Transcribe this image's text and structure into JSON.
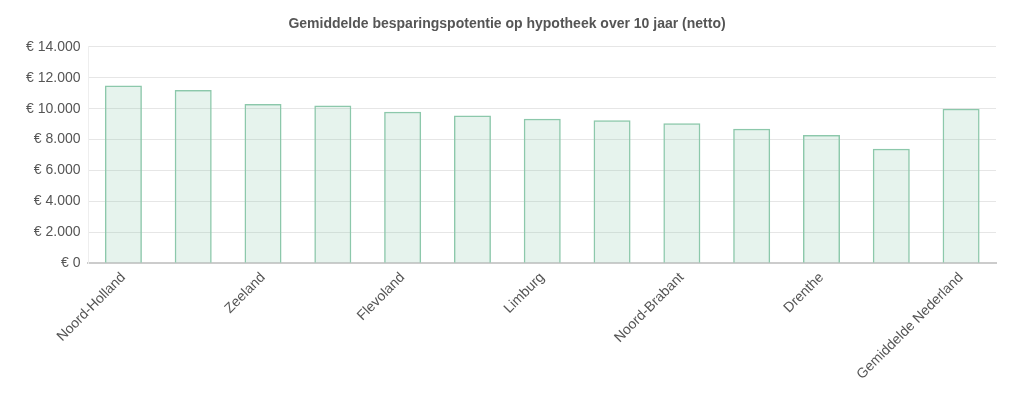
{
  "chart_data": {
    "type": "bar",
    "title": "Gemiddelde besparingspotentie op hypotheek over 10 jaar (netto)",
    "categories": [
      "Noord-Holland",
      null,
      "Zeeland",
      null,
      "Flevoland",
      null,
      "Limburg",
      null,
      "Noord-Brabant",
      null,
      "Drenthe",
      null,
      "Gemiddelde Nederland"
    ],
    "values": [
      11500,
      11200,
      10300,
      10200,
      9800,
      9550,
      9350,
      9250,
      9050,
      8700,
      8300,
      7400,
      10000
    ],
    "color": "#8cc8ab",
    "ylim": [
      0,
      14000
    ],
    "yticks": [
      {
        "value": 0,
        "label": "€ 0"
      },
      {
        "value": 2000,
        "label": "€ 2.000"
      },
      {
        "value": 4000,
        "label": "€ 4.000"
      },
      {
        "value": 6000,
        "label": "€ 6.000"
      },
      {
        "value": 8000,
        "label": "€ 8.000"
      },
      {
        "value": 10000,
        "label": "€ 10.000"
      },
      {
        "value": 12000,
        "label": "€ 12.000"
      },
      {
        "value": 14000,
        "label": "€ 14.000"
      }
    ],
    "grid": "y"
  }
}
